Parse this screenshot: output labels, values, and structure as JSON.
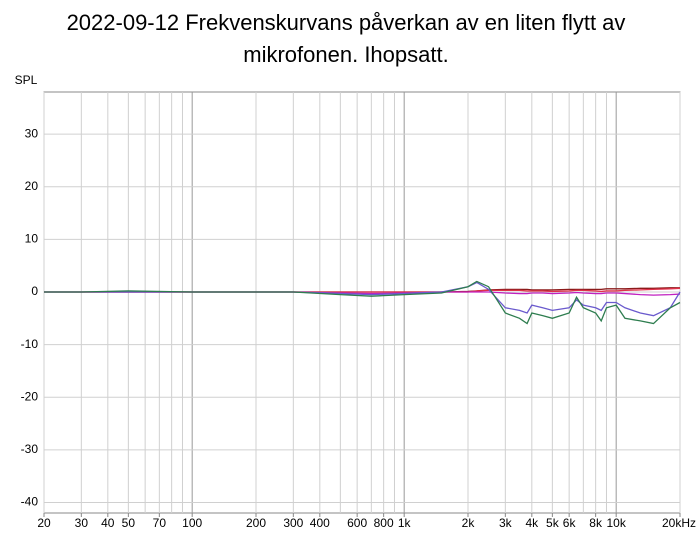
{
  "chart_data": {
    "type": "line",
    "title": [
      "2022-09-12 Frekvenskurvans påverkan av en liten flytt av",
      "mikrofonen. Ihopsatt."
    ],
    "ylabel": "SPL",
    "xscale": "log",
    "grid": true,
    "xlim": [
      20,
      20000
    ],
    "ylim": [
      -42,
      38
    ],
    "yticks": [
      -40,
      -30,
      -20,
      -10,
      0,
      10,
      20,
      30
    ],
    "xticks": [
      20,
      30,
      40,
      50,
      70,
      100,
      200,
      300,
      400,
      600,
      800,
      {
        "value": 1000,
        "label": "1k"
      },
      {
        "value": 2000,
        "label": "2k"
      },
      {
        "value": 3000,
        "label": "3k"
      },
      {
        "value": 4000,
        "label": "4k"
      },
      {
        "value": 5000,
        "label": "5k"
      },
      {
        "value": 6000,
        "label": "6k"
      },
      {
        "value": 8000,
        "label": "8k"
      },
      {
        "value": 10000,
        "label": "10k"
      },
      {
        "value": 20000,
        "label": "20kHz"
      }
    ],
    "xgrid": [
      20,
      30,
      40,
      50,
      60,
      70,
      80,
      90,
      100,
      200,
      300,
      400,
      500,
      600,
      700,
      800,
      900,
      1000,
      2000,
      3000,
      4000,
      5000,
      6000,
      7000,
      8000,
      9000,
      10000,
      20000
    ],
    "x": [
      20,
      30,
      50,
      100,
      200,
      300,
      500,
      700,
      1000,
      1500,
      2000,
      2200,
      2500,
      3000,
      3500,
      3800,
      4000,
      4500,
      5000,
      6000,
      6500,
      7000,
      8000,
      8500,
      9000,
      10000,
      11000,
      13000,
      15000,
      18000,
      20000
    ],
    "series": [
      {
        "color": "#8b1a1a",
        "values": [
          0,
          0,
          0,
          0,
          0,
          0,
          0,
          0,
          0,
          0,
          0.1,
          0.2,
          0.4,
          0.5,
          0.5,
          0.5,
          0.4,
          0.4,
          0.4,
          0.5,
          0.5,
          0.5,
          0.5,
          0.5,
          0.6,
          0.6,
          0.6,
          0.7,
          0.7,
          0.8,
          0.8
        ]
      },
      {
        "color": "#e0304a",
        "values": [
          0,
          0,
          0,
          0,
          0,
          0,
          0,
          0,
          0,
          0,
          0,
          0.2,
          0.3,
          0.3,
          0.3,
          0.2,
          0.2,
          0.2,
          0.1,
          0.2,
          0.3,
          0.3,
          0.2,
          0.1,
          0.2,
          0.2,
          0.3,
          0.4,
          0.5,
          0.6,
          0.7
        ]
      },
      {
        "color": "#c020c0",
        "values": [
          0,
          0,
          0,
          0,
          0,
          0,
          -0.2,
          -0.3,
          -0.2,
          0,
          0,
          0,
          0,
          -0.2,
          -0.3,
          -0.3,
          -0.2,
          -0.2,
          -0.3,
          -0.2,
          -0.1,
          -0.2,
          -0.3,
          -0.3,
          -0.2,
          -0.2,
          -0.3,
          -0.5,
          -0.6,
          -0.5,
          -0.4
        ]
      },
      {
        "color": "#6a5acd",
        "values": [
          0,
          0,
          0,
          0,
          0,
          0,
          -0.3,
          -0.5,
          -0.3,
          0,
          1,
          1.8,
          0.5,
          -3,
          -3.5,
          -4,
          -2.5,
          -3,
          -3.5,
          -3,
          -1.5,
          -2.5,
          -3,
          -3.5,
          -2,
          -2,
          -3,
          -4,
          -4.5,
          -3,
          0
        ]
      },
      {
        "color": "#2e7d4f",
        "values": [
          0,
          0,
          0.2,
          0,
          0,
          0,
          -0.5,
          -0.8,
          -0.5,
          -0.2,
          1,
          2,
          1,
          -4,
          -5,
          -6,
          -4,
          -4.5,
          -5,
          -4,
          -1,
          -3,
          -4,
          -5.5,
          -3,
          -2.5,
          -5,
          -5.5,
          -6,
          -3,
          -2
        ]
      }
    ]
  }
}
